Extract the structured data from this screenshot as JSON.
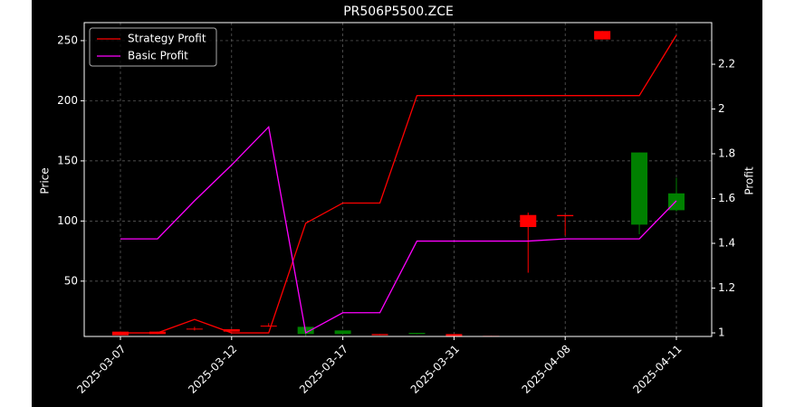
{
  "chart_data": {
    "type": "candlestick",
    "title": "PR506P5500.ZCE",
    "ylabel": "Price",
    "y2label": "Profit",
    "categories": [
      "2025-03-07",
      null,
      null,
      "2025-03-12",
      null,
      null,
      "2025-03-17",
      null,
      null,
      "2025-03-31",
      null,
      null,
      "2025-04-08",
      null,
      null,
      "2025-04-11"
    ],
    "open": [
      8,
      8,
      10.5,
      10,
      13,
      6,
      6,
      6,
      6,
      6,
      4.5,
      105,
      105,
      258,
      97,
      109
    ],
    "high": [
      8,
      8,
      12,
      10,
      15,
      12,
      9,
      6,
      7,
      6,
      4.5,
      107,
      105,
      258,
      157,
      136
    ],
    "low": [
      5,
      6,
      9,
      8,
      12,
      4,
      6,
      5,
      6,
      4,
      4,
      57,
      88,
      251,
      89,
      108
    ],
    "close": [
      5,
      6,
      10,
      8,
      12.5,
      12,
      9,
      5,
      7,
      4,
      4,
      95,
      104,
      251,
      157,
      123
    ],
    "up_color": "#008000",
    "down_color": "#ff0000",
    "ylim": [
      4,
      265
    ],
    "yticks": [
      50,
      100,
      150,
      200,
      250
    ],
    "y2lim": [
      0.984,
      2.386
    ],
    "y2ticks": [
      1.0,
      1.2,
      1.4,
      1.6,
      1.8,
      2.0,
      2.2
    ],
    "grid": true,
    "legend": "upper left",
    "series": [
      {
        "name": "Strategy Profit",
        "color": "#ff0000",
        "axis": "y2",
        "values": [
          1.0,
          1.0,
          1.06,
          1.0,
          1.0,
          1.49,
          1.58,
          1.58,
          2.06,
          2.06,
          2.06,
          2.06,
          2.06,
          2.06,
          2.06,
          2.33
        ]
      },
      {
        "name": "Basic Profit",
        "color": "#ff00ff",
        "axis": "y2",
        "values": [
          1.42,
          1.42,
          1.59,
          1.75,
          1.92,
          1.0,
          1.09,
          1.09,
          1.41,
          1.41,
          1.41,
          1.41,
          1.42,
          1.42,
          1.42,
          1.59
        ]
      }
    ]
  }
}
